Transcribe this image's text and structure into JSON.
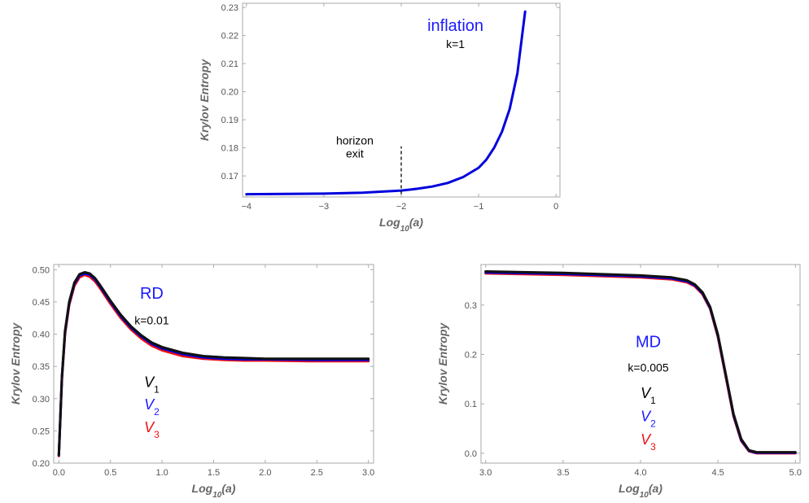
{
  "chart_data": [
    {
      "id": "inflation",
      "type": "line",
      "xlabel": "Log10(a)",
      "ylabel": "Krylov Entropy",
      "xlim": [
        -4.05,
        0.05
      ],
      "ylim": [
        0.1625,
        0.2315
      ],
      "xticks": [
        -4,
        -3,
        -2,
        -1,
        0
      ],
      "yticks": [
        0.17,
        0.18,
        0.19,
        0.2,
        0.21,
        0.22,
        0.23
      ],
      "ytick_decimals": 2,
      "xtick_decimals": 0,
      "annotations": [
        {
          "text": "inflation",
          "x": -1.3,
          "y": 0.2217,
          "color": "#1a1aff",
          "size": 20
        },
        {
          "text": "k=1",
          "x": -1.3,
          "y": 0.2155,
          "color": "#000000",
          "size": 14
        },
        {
          "text": "horizon",
          "x": -2.6,
          "y": 0.1812,
          "color": "#000000",
          "size": 14
        },
        {
          "text": "exit",
          "x": -2.6,
          "y": 0.1765,
          "color": "#000000",
          "size": 14
        }
      ],
      "vline": {
        "x": -2,
        "y0": 0.1635,
        "y1": 0.1805
      },
      "series": [
        {
          "color": "#0000dd",
          "x": [
            -4.0,
            -3.5,
            -3.0,
            -2.5,
            -2.0,
            -1.8,
            -1.6,
            -1.4,
            -1.2,
            -1.0,
            -0.9,
            -0.8,
            -0.7,
            -0.6,
            -0.5,
            -0.4
          ],
          "y": [
            0.1635,
            0.1636,
            0.1637,
            0.164,
            0.1648,
            0.1654,
            0.1662,
            0.1675,
            0.1696,
            0.1729,
            0.1758,
            0.18,
            0.1857,
            0.1938,
            0.2065,
            0.2285
          ]
        }
      ]
    },
    {
      "id": "rd",
      "type": "line",
      "xlabel": "Log10(a)",
      "ylabel": "Krylov Entropy",
      "xlim": [
        -0.05,
        3.05
      ],
      "ylim": [
        0.2,
        0.508
      ],
      "xticks": [
        0.0,
        0.5,
        1.0,
        1.5,
        2.0,
        2.5,
        3.0
      ],
      "yticks": [
        0.2,
        0.25,
        0.3,
        0.35,
        0.4,
        0.45,
        0.5
      ],
      "ytick_decimals": 2,
      "xtick_decimals": 1,
      "annotations": [
        {
          "text": "RD",
          "x": 0.9,
          "y": 0.455,
          "color": "#1a1aff",
          "size": 20
        },
        {
          "text": "k=0.01",
          "x": 0.9,
          "y": 0.415,
          "color": "#000000",
          "size": 14
        }
      ],
      "legend": [
        {
          "label": "V",
          "sub": "1",
          "color": "#000000",
          "x": 0.9,
          "y": 0.318
        },
        {
          "label": "V",
          "sub": "2",
          "color": "#1a1aff",
          "x": 0.9,
          "y": 0.283
        },
        {
          "label": "V",
          "sub": "3",
          "color": "#ee1111",
          "x": 0.9,
          "y": 0.248
        }
      ],
      "series": [
        {
          "color": "#ee1111",
          "x": [
            0.0,
            0.03,
            0.06,
            0.1,
            0.15,
            0.2,
            0.25,
            0.3,
            0.35,
            0.4,
            0.5,
            0.6,
            0.7,
            0.8,
            0.9,
            1.0,
            1.2,
            1.4,
            1.6,
            1.8,
            2.0,
            2.5,
            3.0
          ],
          "y": [
            0.211,
            0.33,
            0.4,
            0.445,
            0.475,
            0.488,
            0.492,
            0.489,
            0.482,
            0.471,
            0.447,
            0.425,
            0.407,
            0.393,
            0.382,
            0.375,
            0.366,
            0.362,
            0.36,
            0.359,
            0.359,
            0.358,
            0.358
          ]
        },
        {
          "color": "#0000dd",
          "x": [
            0.0,
            0.03,
            0.06,
            0.1,
            0.15,
            0.2,
            0.25,
            0.3,
            0.35,
            0.4,
            0.5,
            0.6,
            0.7,
            0.8,
            0.9,
            1.0,
            1.2,
            1.4,
            1.6,
            1.8,
            2.0,
            2.5,
            3.0
          ],
          "y": [
            0.212,
            0.333,
            0.403,
            0.448,
            0.478,
            0.491,
            0.494,
            0.492,
            0.485,
            0.474,
            0.45,
            0.428,
            0.41,
            0.396,
            0.385,
            0.378,
            0.369,
            0.364,
            0.362,
            0.361,
            0.361,
            0.36,
            0.36
          ]
        },
        {
          "color": "#111111",
          "x": [
            0.0,
            0.03,
            0.06,
            0.1,
            0.15,
            0.2,
            0.25,
            0.3,
            0.35,
            0.4,
            0.5,
            0.6,
            0.7,
            0.8,
            0.9,
            1.0,
            1.2,
            1.4,
            1.6,
            1.8,
            2.0,
            2.5,
            3.0
          ],
          "y": [
            0.213,
            0.335,
            0.405,
            0.45,
            0.48,
            0.493,
            0.496,
            0.494,
            0.487,
            0.476,
            0.452,
            0.43,
            0.412,
            0.398,
            0.387,
            0.38,
            0.371,
            0.366,
            0.364,
            0.363,
            0.362,
            0.362,
            0.362
          ]
        }
      ]
    },
    {
      "id": "md",
      "type": "line",
      "xlabel": "Log10(a)",
      "ylabel": "Krylov Entropy",
      "xlim": [
        2.97,
        5.03
      ],
      "ylim": [
        -0.02,
        0.382
      ],
      "xticks": [
        3.0,
        3.5,
        4.0,
        4.5,
        5.0
      ],
      "yticks": [
        0.0,
        0.1,
        0.2,
        0.3
      ],
      "ytick_decimals": 1,
      "xtick_decimals": 1,
      "annotations": [
        {
          "text": "MD",
          "x": 4.05,
          "y": 0.215,
          "color": "#1a1aff",
          "size": 20
        },
        {
          "text": "k=0.005",
          "x": 4.05,
          "y": 0.165,
          "color": "#000000",
          "size": 14
        }
      ],
      "legend": [
        {
          "label": "V",
          "sub": "1",
          "color": "#000000",
          "x": 4.05,
          "y": 0.112
        },
        {
          "label": "V",
          "sub": "2",
          "color": "#1a1aff",
          "x": 4.05,
          "y": 0.065
        },
        {
          "label": "V",
          "sub": "3",
          "color": "#ee1111",
          "x": 4.05,
          "y": 0.018
        }
      ],
      "series": [
        {
          "color": "#ee1111",
          "x": [
            3.0,
            3.5,
            4.0,
            4.2,
            4.3,
            4.35,
            4.4,
            4.45,
            4.5,
            4.55,
            4.6,
            4.65,
            4.7,
            4.75,
            4.8,
            5.0
          ],
          "y": [
            0.364,
            0.361,
            0.356,
            0.352,
            0.346,
            0.338,
            0.322,
            0.292,
            0.235,
            0.155,
            0.075,
            0.025,
            0.004,
            0.0,
            0.0,
            0.0
          ]
        },
        {
          "color": "#0000dd",
          "x": [
            3.0,
            3.5,
            4.0,
            4.2,
            4.3,
            4.35,
            4.4,
            4.45,
            4.5,
            4.55,
            4.6,
            4.65,
            4.7,
            4.75,
            4.8,
            5.0
          ],
          "y": [
            0.366,
            0.363,
            0.358,
            0.354,
            0.348,
            0.34,
            0.324,
            0.294,
            0.238,
            0.158,
            0.078,
            0.027,
            0.005,
            0.001,
            0.001,
            0.001
          ]
        },
        {
          "color": "#111111",
          "x": [
            3.0,
            3.5,
            4.0,
            4.2,
            4.3,
            4.35,
            4.4,
            4.45,
            4.5,
            4.55,
            4.6,
            4.65,
            4.7,
            4.75,
            4.8,
            5.0
          ],
          "y": [
            0.368,
            0.365,
            0.36,
            0.356,
            0.35,
            0.342,
            0.326,
            0.296,
            0.24,
            0.16,
            0.08,
            0.029,
            0.006,
            0.002,
            0.002,
            0.002
          ]
        }
      ]
    }
  ]
}
